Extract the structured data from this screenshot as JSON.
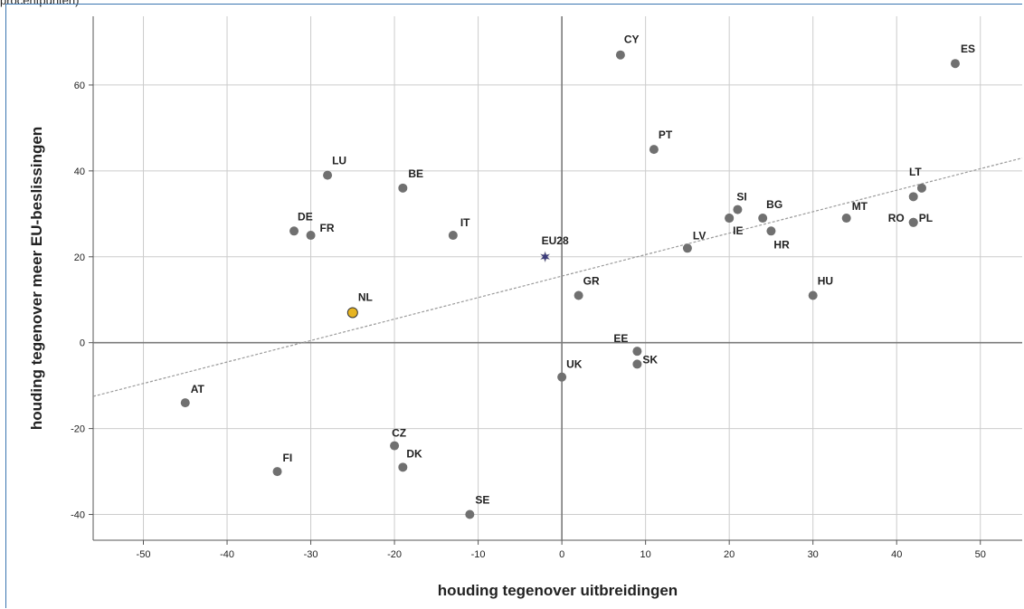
{
  "caption": "procentpunten)",
  "chart_data": {
    "type": "scatter",
    "xlabel": "houding tegenover uitbreidingen",
    "ylabel": "houding tegenover meer EU-beslissingen",
    "xlim": [
      -56,
      55
    ],
    "ylim": [
      -46,
      76
    ],
    "xticks": [
      -50,
      -40,
      -30,
      -20,
      -10,
      0,
      10,
      20,
      30,
      40,
      50
    ],
    "yticks": [
      -40,
      -20,
      0,
      20,
      40,
      60
    ],
    "grid": true,
    "colors": {
      "point": "#707070",
      "highlight": "#e6b422",
      "eu": "#3b3b7a",
      "trend": "#9a9a9a"
    },
    "trendline": {
      "x": [
        -56,
        55
      ],
      "y": [
        -12.5,
        43
      ]
    },
    "points": [
      {
        "label": "CY",
        "x": 7,
        "y": 67
      },
      {
        "label": "ES",
        "x": 47,
        "y": 65
      },
      {
        "label": "PT",
        "x": 11,
        "y": 45
      },
      {
        "label": "LU",
        "x": -28,
        "y": 39
      },
      {
        "label": "BE",
        "x": -19,
        "y": 36
      },
      {
        "label": "LT",
        "x": 43,
        "y": 36
      },
      {
        "label": "",
        "x": 42,
        "y": 34
      },
      {
        "label": "SI",
        "x": 21,
        "y": 31
      },
      {
        "label": "BG",
        "x": 24,
        "y": 29
      },
      {
        "label": "MT",
        "x": 34,
        "y": 29
      },
      {
        "label": "",
        "x": 20,
        "y": 29
      },
      {
        "label": "RO",
        "x": 42,
        "y": 28
      },
      {
        "label": "PL",
        "x": 42,
        "y": 28
      },
      {
        "label": "IE",
        "x": 20,
        "y": 29
      },
      {
        "label": "HR",
        "x": 25,
        "y": 26
      },
      {
        "label": "DE",
        "x": -32,
        "y": 26
      },
      {
        "label": "FR",
        "x": -30,
        "y": 25
      },
      {
        "label": "IT",
        "x": -13,
        "y": 25
      },
      {
        "label": "LV",
        "x": 15,
        "y": 22
      },
      {
        "label": "GR",
        "x": 2,
        "y": 11
      },
      {
        "label": "HU",
        "x": 30,
        "y": 11
      },
      {
        "label": "EE",
        "x": 9,
        "y": -2
      },
      {
        "label": "SK",
        "x": 9,
        "y": -5
      },
      {
        "label": "UK",
        "x": 0,
        "y": -8
      },
      {
        "label": "AT",
        "x": -45,
        "y": -14
      },
      {
        "label": "CZ",
        "x": -20,
        "y": -24
      },
      {
        "label": "DK",
        "x": -19,
        "y": -29
      },
      {
        "label": "FI",
        "x": -34,
        "y": -30
      },
      {
        "label": "SE",
        "x": -11,
        "y": -40
      }
    ],
    "highlight": {
      "label": "NL",
      "x": -25,
      "y": 7
    },
    "reference": {
      "label": "EU28",
      "x": -2,
      "y": 20
    }
  }
}
